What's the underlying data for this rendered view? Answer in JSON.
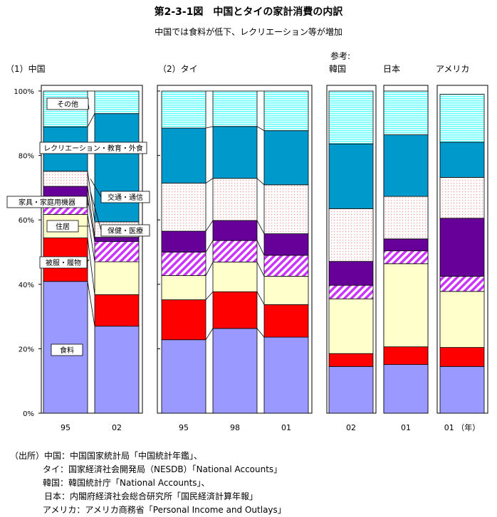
{
  "title": "第2-3-1図　中国とタイの家計消費の内訳",
  "subtitle": "中国では食料が低下、レクリエーション等が増加",
  "groups": {
    "china": "（1）中国",
    "thai": "（2）タイ",
    "ref": "参考:",
    "korea": "韓国",
    "japan": "日本",
    "usa": "アメリカ"
  },
  "yticks": [
    "0%",
    "20%",
    "40%",
    "60%",
    "80%",
    "100%"
  ],
  "categories": {
    "food": "食料",
    "clothing": "被服・履物",
    "housing": "住居",
    "household": "家具・家庭用機器",
    "health": "保健・医療",
    "transport": "交通・通信",
    "recreation": "レクリエーション・教育・外食",
    "other": "その他"
  },
  "colors": {
    "food": "#9999ff",
    "clothing": "#ff0000",
    "housing": "#ffffcc",
    "household": "#cc33ff",
    "health": "#660099",
    "transport": "#ffcccc",
    "recreation": "#0099cc",
    "other": "#66ffff"
  },
  "chart_data": {
    "type": "bar",
    "stacked": true,
    "ylim": [
      0,
      100
    ],
    "order": [
      "food",
      "clothing",
      "housing",
      "household",
      "health",
      "transport",
      "recreation",
      "other"
    ],
    "bars": [
      {
        "country": "china",
        "label": "95",
        "values": {
          "food": 40.9,
          "clothing": 13.5,
          "housing": 7.3,
          "household": 5.4,
          "health": 3.3,
          "transport": 4.7,
          "recreation": 13.8,
          "other": 11.1
        }
      },
      {
        "country": "china",
        "label": "02",
        "values": {
          "food": 27.0,
          "clothing": 9.8,
          "housing": 10.2,
          "household": 6.3,
          "health": 1.3,
          "transport": 4.8,
          "recreation": 33.6,
          "other": 7.0
        }
      },
      {
        "country": "thai",
        "label": "95",
        "values": {
          "food": 22.8,
          "clothing": 12.4,
          "housing": 7.5,
          "household": 7.3,
          "health": 6.5,
          "transport": 14.9,
          "recreation": 17.1,
          "other": 11.5
        }
      },
      {
        "country": "thai",
        "label": "98",
        "values": {
          "food": 26.3,
          "clothing": 11.4,
          "housing": 9.2,
          "household": 6.7,
          "health": 6.2,
          "transport": 13.1,
          "recreation": 16.1,
          "other": 11.0
        }
      },
      {
        "country": "thai",
        "label": "01",
        "values": {
          "food": 23.6,
          "clothing": 10.1,
          "housing": 8.8,
          "household": 6.5,
          "health": 6.7,
          "transport": 15.2,
          "recreation": 16.8,
          "other": 12.3
        }
      },
      {
        "country": "korea",
        "label": "02",
        "values": {
          "food": 14.5,
          "clothing": 4.0,
          "housing": 17.0,
          "household": 4.2,
          "health": 7.4,
          "transport": 16.4,
          "recreation": 20.1,
          "other": 16.4
        }
      },
      {
        "country": "japan",
        "label": "01",
        "values": {
          "food": 15.1,
          "clothing": 5.5,
          "housing": 25.8,
          "household": 4.0,
          "health": 3.7,
          "transport": 13.2,
          "recreation": 19.1,
          "other": 13.6
        }
      },
      {
        "country": "usa",
        "label": "01 （年）",
        "values": {
          "food": 14.5,
          "clothing": 5.9,
          "housing": 17.4,
          "household": 4.7,
          "health": 18.0,
          "transport": 12.7,
          "recreation": 10.9,
          "other": 14.9
        }
      }
    ]
  },
  "source": [
    "（出所）中国：中国国家統計局「中国統計年鑑」、",
    "タイ：国家経済社会開発局（NESDB）「National Accounts」",
    "韓国：韓国統計庁「National Accounts」、",
    "日本：内閣府経済社会総合研究所「国民経済計算年報」",
    "アメリカ：アメリカ商務省「Personal Income and Outlays」"
  ]
}
